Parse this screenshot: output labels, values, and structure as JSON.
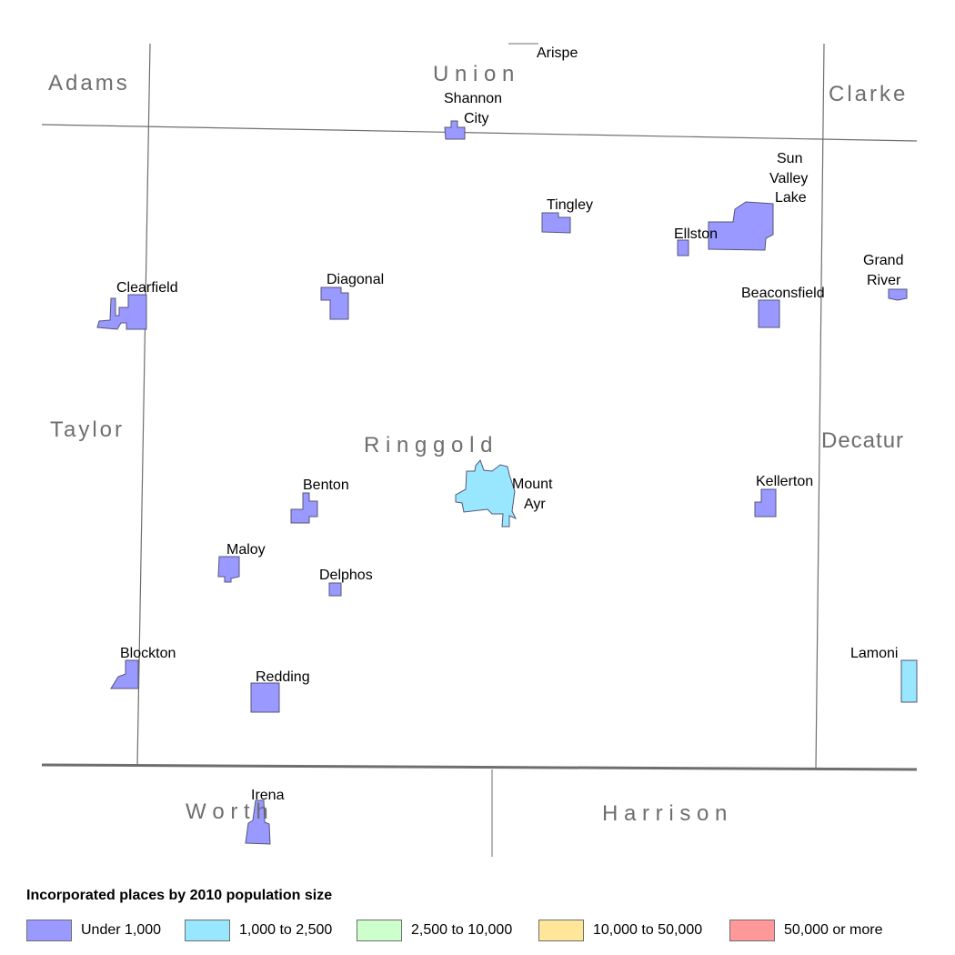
{
  "counties": {
    "center": "R i n g g o l d",
    "adams": "Adams",
    "union": "U n i o n",
    "clarke": "Clarke",
    "taylor": "Taylor",
    "decatur": "Decatur",
    "worth": "W o r t h",
    "harrison": "H a r r i s o n"
  },
  "places": {
    "arispe": "Arispe",
    "shannon_city_1": "Shannon",
    "shannon_city_2": "City",
    "tingley": "Tingley",
    "sun_valley_lake_1": "Sun",
    "sun_valley_lake_2": "Valley",
    "sun_valley_lake_3": "Lake",
    "ellston": "Ellston",
    "grand_river_1": "Grand",
    "grand_river_2": "River",
    "beaconsfield": "Beaconsfield",
    "clearfield": "Clearfield",
    "diagonal": "Diagonal",
    "benton": "Benton",
    "mount_ayr_1": "Mount",
    "mount_ayr_2": "Ayr",
    "kellerton": "Kellerton",
    "maloy": "Maloy",
    "delphos": "Delphos",
    "blockton": "Blockton",
    "redding": "Redding",
    "lamoni": "Lamoni",
    "irena": "Irena"
  },
  "colors": {
    "under_1000": "#9999ff",
    "1000_to_2500": "#99e6ff",
    "2500_to_10000": "#ccffcc",
    "10000_to_50000": "#ffe699",
    "50000_plus": "#ff9999",
    "boundary": "#6e6e6e"
  },
  "legend": {
    "title": "Incorporated places by 2010 population size",
    "items": [
      {
        "label": "Under 1,000",
        "color": "#9999ff"
      },
      {
        "label": "1,000 to 2,500",
        "color": "#99e6ff"
      },
      {
        "label": "2,500 to 10,000",
        "color": "#ccffcc"
      },
      {
        "label": "10,000 to 50,000",
        "color": "#ffe699"
      },
      {
        "label": "50,000 or more",
        "color": "#ff9999"
      }
    ]
  }
}
